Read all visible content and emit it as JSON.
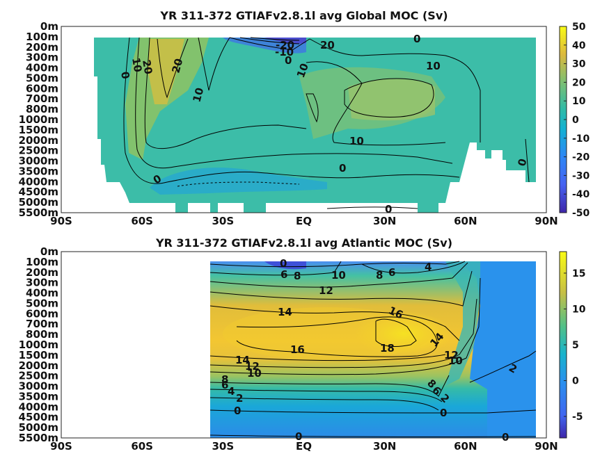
{
  "chart_data": [
    {
      "type": "heatmap",
      "title": "YR 311-372 GTIAFv2.8.1l avg  Global MOC (Sv)",
      "x_ticks": [
        "90S",
        "60S",
        "30S",
        "EQ",
        "30N",
        "60N",
        "90N"
      ],
      "y_ticks": [
        "0m",
        "100m",
        "200m",
        "300m",
        "400m",
        "500m",
        "600m",
        "700m",
        "800m",
        "1000m",
        "1500m",
        "2000m",
        "2500m",
        "3000m",
        "3500m",
        "4000m",
        "4500m",
        "5000m",
        "5500m"
      ],
      "colorbar": {
        "ticks": [
          "50",
          "40",
          "30",
          "20",
          "10",
          "0",
          "-10",
          "-20",
          "-30",
          "-40",
          "-50"
        ],
        "min": -50,
        "max": 50
      },
      "contour_labels": [
        "20",
        "10",
        "0",
        "20",
        "10",
        "-20",
        "-10",
        "0",
        "20",
        "0",
        "10",
        "10",
        "10",
        "0",
        "0",
        "0"
      ],
      "xlim": [
        -90,
        90
      ]
    },
    {
      "type": "heatmap",
      "title": "YR 311-372 GTIAFv2.8.1l avg  Atlantic MOC (Sv)",
      "x_ticks": [
        "90S",
        "60S",
        "30S",
        "EQ",
        "30N",
        "60N",
        "90N"
      ],
      "y_ticks": [
        "0m",
        "100m",
        "200m",
        "300m",
        "400m",
        "500m",
        "600m",
        "700m",
        "800m",
        "1000m",
        "1500m",
        "2000m",
        "2500m",
        "3000m",
        "3500m",
        "4000m",
        "4500m",
        "5000m",
        "5500m"
      ],
      "colorbar": {
        "ticks": [
          "15",
          "10",
          "5",
          "0",
          "-5"
        ],
        "min": -8,
        "max": 18
      },
      "contour_labels": [
        "0",
        "6",
        "8",
        "10",
        "8",
        "6",
        "4",
        "12",
        "14",
        "16",
        "16",
        "18",
        "14",
        "12",
        "10",
        "14",
        "12",
        "10",
        "8",
        "6",
        "4",
        "2",
        "0",
        "8",
        "6",
        "2",
        "2",
        "0",
        "0",
        "0"
      ],
      "xlim": [
        -90,
        90
      ]
    }
  ]
}
